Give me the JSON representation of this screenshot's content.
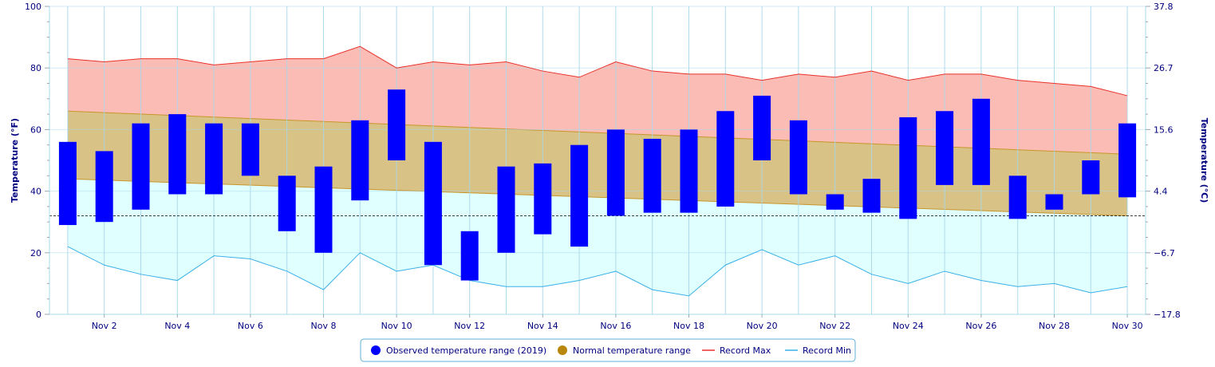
{
  "chart_data": {
    "type": "bar",
    "ylabel_left": "Temperature (°F)",
    "ylabel_right": "Temperature (°C)",
    "ylim": [
      0,
      100
    ],
    "y_ticks_left": [
      "0",
      "20",
      "40",
      "60",
      "80",
      "100"
    ],
    "y_ticks_right": [
      "−17.8",
      "−6.7",
      "4.4",
      "15.6",
      "26.7",
      "37.8"
    ],
    "x_ticks": [
      "Nov 2",
      "Nov 4",
      "Nov 6",
      "Nov 8",
      "Nov 10",
      "Nov 12",
      "Nov 14",
      "Nov 16",
      "Nov 18",
      "Nov 20",
      "Nov 22",
      "Nov 24",
      "Nov 26",
      "Nov 28",
      "Nov 30"
    ],
    "x_tick_days": [
      2,
      4,
      6,
      8,
      10,
      12,
      14,
      16,
      18,
      20,
      22,
      24,
      26,
      28,
      30
    ],
    "freezing_line": 32,
    "days": [
      1,
      2,
      3,
      4,
      5,
      6,
      7,
      8,
      9,
      10,
      11,
      12,
      13,
      14,
      15,
      16,
      17,
      18,
      19,
      20,
      21,
      22,
      23,
      24,
      25,
      26,
      27,
      28,
      29,
      30
    ],
    "observed_low": [
      29,
      30,
      34,
      39,
      39,
      45,
      27,
      20,
      37,
      50,
      16,
      11,
      20,
      26,
      22,
      32,
      33,
      33,
      35,
      50,
      39,
      34,
      33,
      31,
      42,
      42,
      31,
      34,
      39,
      38
    ],
    "observed_high": [
      56,
      53,
      62,
      65,
      62,
      62,
      45,
      48,
      63,
      73,
      56,
      27,
      48,
      49,
      55,
      60,
      57,
      60,
      66,
      71,
      63,
      39,
      44,
      64,
      66,
      70,
      45,
      39,
      50,
      62
    ],
    "normal_high_start": 66,
    "normal_high_end": 52,
    "normal_low_start": 44,
    "normal_low_end": 32,
    "record_max": [
      83,
      82,
      83,
      83,
      81,
      82,
      83,
      83,
      87,
      80,
      82,
      81,
      82,
      79,
      77,
      82,
      79,
      78,
      78,
      76,
      78,
      77,
      79,
      76,
      78,
      78,
      76,
      75,
      74,
      71
    ],
    "record_min": [
      22,
      16,
      13,
      11,
      19,
      18,
      14,
      8,
      20,
      14,
      16,
      11,
      9,
      9,
      11,
      14,
      8,
      6,
      16,
      21,
      16,
      19,
      13,
      10,
      14,
      11,
      9,
      10,
      7,
      9
    ],
    "series": [
      {
        "name": "Observed temperature range (2019)",
        "color": "#0000ff"
      },
      {
        "name": "Normal temperature range",
        "color": "#b8860b"
      },
      {
        "name": "Record Max",
        "color": "#e8312a"
      },
      {
        "name": "Record Min",
        "color": "#38b0e8"
      }
    ],
    "colors": {
      "record_band": "#fbbcb6",
      "normal_band": "#d8c285",
      "low_band": "#e0ffff",
      "grid": "#a8d8ea",
      "text": "#000080"
    },
    "grid": true,
    "legend_position": "bottom-center"
  }
}
